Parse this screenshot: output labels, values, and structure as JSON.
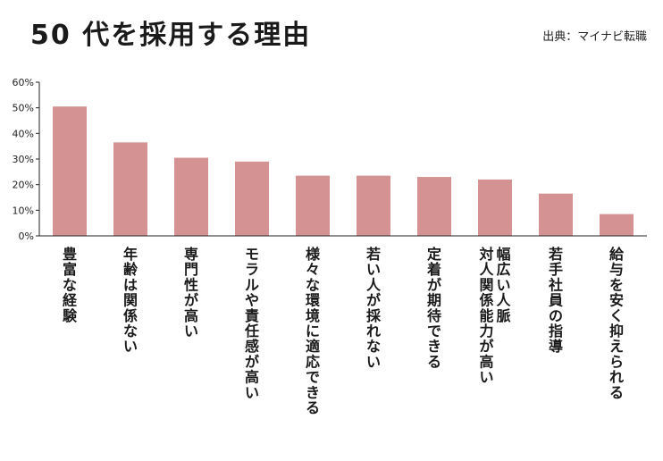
{
  "header": {
    "title": "50 代を採用する理由",
    "source": "出典：マイナビ転職"
  },
  "chart_data": {
    "type": "bar",
    "title": "50 代を採用する理由",
    "categories": [
      "豊富な経験",
      "年齢は関係ない",
      "専門性が高い",
      "モラルや責任感が高い",
      "様々な環境に適応できる",
      "若い人が採れない",
      "定着が期待できる",
      "幅広い人脈\n対人関係能力が高い",
      "若手社員の指導",
      "給与を安く抑えられる"
    ],
    "values": [
      50.5,
      36.5,
      30.5,
      29,
      23.5,
      23.5,
      23,
      22,
      16.5,
      8.5
    ],
    "yticks": [
      "0%",
      "10%",
      "20%",
      "30%",
      "40%",
      "50%",
      "60%"
    ],
    "ylim": [
      0,
      60
    ],
    "bar_color": "#d59292",
    "axis_color": "#222222"
  }
}
